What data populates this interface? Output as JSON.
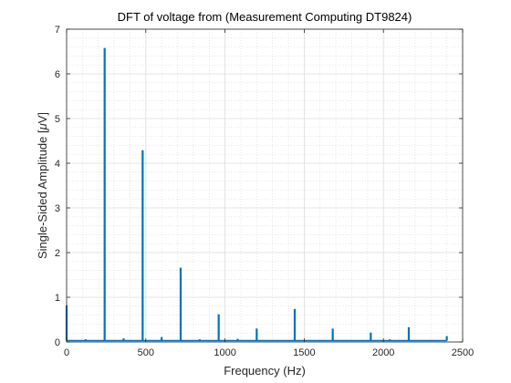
{
  "chart_data": {
    "type": "line",
    "title": "DFT of voltage from (Measurement Computing DT9824)",
    "xlabel": "Frequency (Hz)",
    "ylabel_prefix": "Single-Sided Amplitude [",
    "ylabel_mu": "μ",
    "ylabel_suffix": "V]",
    "xlim": [
      0,
      2500
    ],
    "ylim": [
      0,
      7
    ],
    "xticks": [
      0,
      500,
      1000,
      1500,
      2000,
      2500
    ],
    "yticks": [
      0,
      1,
      2,
      3,
      4,
      5,
      6,
      7
    ],
    "xminor_step": 100,
    "yminor_step": 0.2,
    "grid": true,
    "minor_grid": true,
    "line_color": "#0072BD",
    "noise_floor": 0.03,
    "spikes": [
      {
        "x": 0,
        "y": 0.82
      },
      {
        "x": 120,
        "y": 0.06
      },
      {
        "x": 240,
        "y": 6.58
      },
      {
        "x": 360,
        "y": 0.08
      },
      {
        "x": 480,
        "y": 4.29
      },
      {
        "x": 600,
        "y": 0.11
      },
      {
        "x": 720,
        "y": 1.66
      },
      {
        "x": 840,
        "y": 0.06
      },
      {
        "x": 960,
        "y": 0.62
      },
      {
        "x": 1080,
        "y": 0.07
      },
      {
        "x": 1200,
        "y": 0.3
      },
      {
        "x": 1440,
        "y": 0.74
      },
      {
        "x": 1680,
        "y": 0.3
      },
      {
        "x": 1920,
        "y": 0.21
      },
      {
        "x": 2040,
        "y": 0.06
      },
      {
        "x": 2160,
        "y": 0.33
      },
      {
        "x": 2400,
        "y": 0.13
      }
    ]
  }
}
